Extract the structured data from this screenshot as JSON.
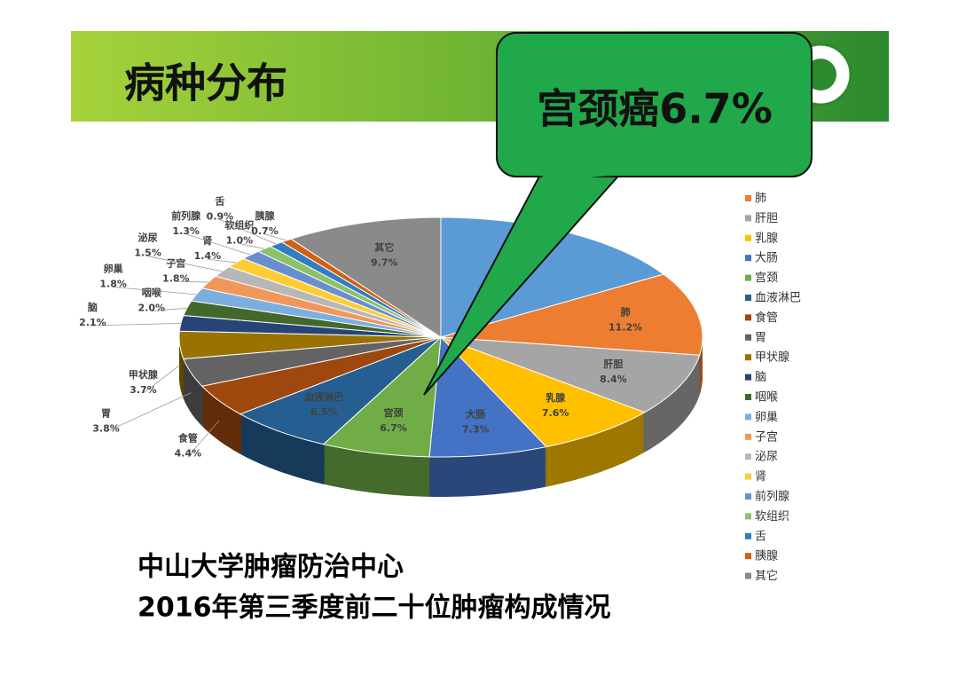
{
  "header": {
    "title": "病种分布"
  },
  "callout": "宫颈癌6.7%",
  "footer": [
    "中山大学肿瘤防治中心",
    "2016年第三季度前二十位肿瘤构成情况"
  ],
  "chart_data": {
    "type": "pie",
    "categories": [
      "肺",
      "肝胆",
      "乳腺",
      "大肠",
      "宫颈",
      "血液淋巴",
      "食管",
      "胃",
      "甲状腺",
      "脑",
      "咽喉",
      "卵巢",
      "子宫",
      "泌尿",
      "肾",
      "前列腺",
      "软组织",
      "舌",
      "胰腺",
      "其它"
    ],
    "values": [
      11.2,
      8.4,
      7.6,
      7.3,
      6.7,
      6.5,
      4.4,
      3.8,
      3.7,
      2.1,
      2.0,
      1.8,
      1.8,
      1.5,
      1.4,
      1.3,
      1.0,
      0.9,
      0.7,
      9.7
    ],
    "value_labels": [
      "11.2%",
      "8.4%",
      "7.6%",
      "7.3%",
      "6.7%",
      "6.5%",
      "4.4%",
      "3.8%",
      "3.7%",
      "2.1%",
      "2.0%",
      "1.8%",
      "1.8%",
      "1.5%",
      "1.4%",
      "1.3%",
      "1.0%",
      "0.9%",
      "0.7%",
      "9.7%"
    ],
    "colors": [
      "#ed7d31",
      "#a5a5a5",
      "#ffc000",
      "#4472c4",
      "#70ad47",
      "#255e91",
      "#9e480e",
      "#636363",
      "#997300",
      "#264478",
      "#43682b",
      "#7cafdd",
      "#f1975a",
      "#b7b7b7",
      "#ffcd33",
      "#698ed0",
      "#8cc168",
      "#327dc2",
      "#d26012",
      "#8a8a8a"
    ]
  }
}
